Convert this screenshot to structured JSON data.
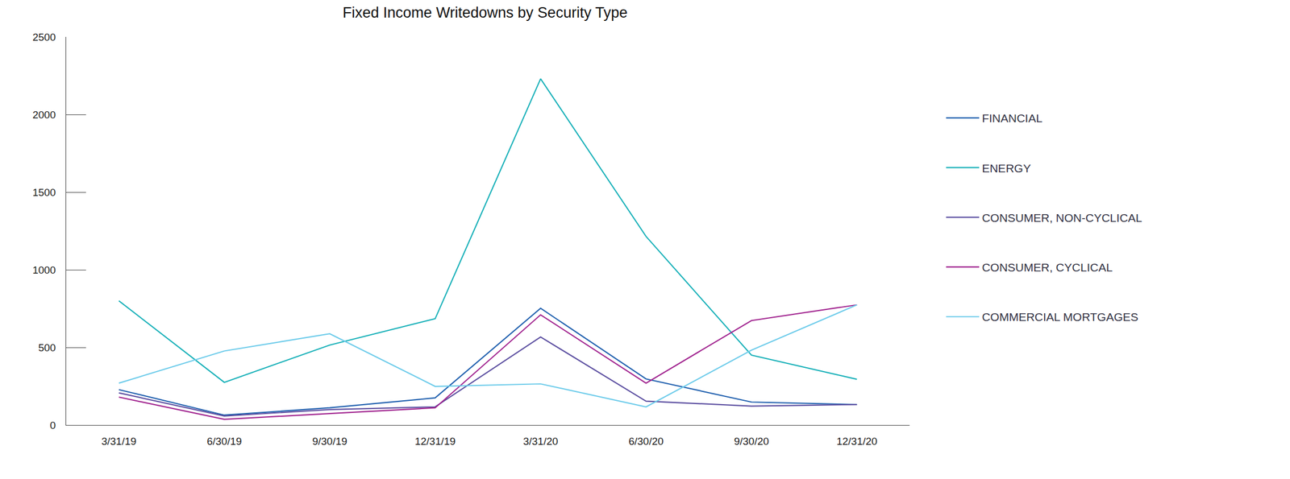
{
  "chart_data": {
    "type": "line",
    "title": "Fixed Income Writedowns by Security Type",
    "categories": [
      "3/31/19",
      "6/30/19",
      "9/30/19",
      "12/31/19",
      "3/31/20",
      "6/30/20",
      "9/30/20",
      "12/31/20"
    ],
    "series": [
      {
        "name": "FINANCIAL",
        "color": "#1f5fae",
        "values": [
          228,
          64,
          111,
          175,
          752,
          297,
          148,
          132
        ]
      },
      {
        "name": "ENERGY",
        "color": "#17b0b8",
        "values": [
          800,
          275,
          515,
          685,
          2230,
          1215,
          450,
          295
        ]
      },
      {
        "name": "CONSUMER, NON-CYCLICAL",
        "color": "#5b4ea0",
        "values": [
          207,
          58,
          100,
          117,
          567,
          154,
          122,
          132
        ]
      },
      {
        "name": "CONSUMER, CYCLICAL",
        "color": "#a0228e",
        "values": [
          180,
          37,
          74,
          111,
          710,
          270,
          673,
          774
        ]
      },
      {
        "name": "COMMERCIAL MORTGAGES",
        "color": "#6ccbea",
        "values": [
          270,
          477,
          588,
          249,
          265,
          117,
          482,
          774
        ]
      }
    ],
    "ylim": [
      0,
      2500
    ],
    "yticks": [
      0,
      500,
      1000,
      1500,
      2000,
      2500
    ],
    "grid": false,
    "legend": "right"
  }
}
